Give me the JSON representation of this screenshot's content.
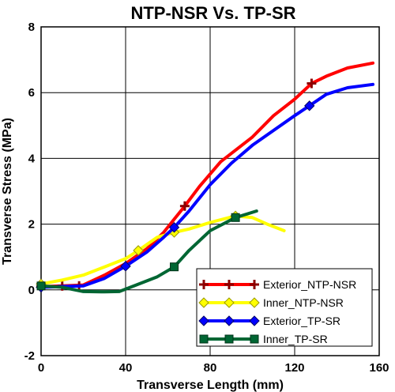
{
  "chart_data": {
    "type": "line",
    "title": "NTP-NSR Vs. TP-SR",
    "xlabel": "Transverse Length (mm)",
    "ylabel": "Transverse Stress (MPa)",
    "xlim": [
      0,
      160
    ],
    "ylim": [
      -2,
      8
    ],
    "xticks": [
      0,
      40,
      80,
      120,
      160
    ],
    "yticks": [
      -2,
      0,
      2,
      4,
      6,
      8
    ],
    "grid": true,
    "legend_position": "bottom-right",
    "series": [
      {
        "name": "Exterior_NTP-NSR",
        "color": "#ff0000",
        "marker": "plus",
        "markers": [
          [
            0,
            0.1
          ],
          [
            10,
            0.12
          ],
          [
            18,
            0.12
          ],
          [
            68,
            2.55
          ],
          [
            128,
            6.28
          ]
        ],
        "points": [
          [
            0,
            0.1
          ],
          [
            10,
            0.12
          ],
          [
            20,
            0.15
          ],
          [
            30,
            0.45
          ],
          [
            40,
            0.8
          ],
          [
            50,
            1.25
          ],
          [
            58,
            1.75
          ],
          [
            63,
            2.15
          ],
          [
            68,
            2.55
          ],
          [
            75,
            3.15
          ],
          [
            85,
            3.9
          ],
          [
            100,
            4.65
          ],
          [
            110,
            5.3
          ],
          [
            120,
            5.8
          ],
          [
            128,
            6.28
          ],
          [
            135,
            6.5
          ],
          [
            145,
            6.75
          ],
          [
            157,
            6.9
          ]
        ]
      },
      {
        "name": "Inner_NTP-NSR",
        "color": "#ffff00",
        "marker": "diamond",
        "markers": [
          [
            0,
            0.18
          ],
          [
            46,
            1.2
          ],
          [
            63,
            1.75
          ],
          [
            92,
            2.25
          ]
        ],
        "points": [
          [
            0,
            0.18
          ],
          [
            10,
            0.3
          ],
          [
            20,
            0.45
          ],
          [
            30,
            0.7
          ],
          [
            40,
            0.95
          ],
          [
            46,
            1.2
          ],
          [
            55,
            1.6
          ],
          [
            63,
            1.75
          ],
          [
            70,
            1.85
          ],
          [
            80,
            2.05
          ],
          [
            92,
            2.25
          ],
          [
            100,
            2.2
          ],
          [
            107,
            2.0
          ],
          [
            115,
            1.8
          ]
        ]
      },
      {
        "name": "Exterior_TP-SR",
        "color": "#0000ff",
        "marker": "diamond",
        "markers": [
          [
            0,
            0.08
          ],
          [
            40,
            0.72
          ],
          [
            63,
            1.9
          ],
          [
            127,
            5.6
          ]
        ],
        "points": [
          [
            0,
            0.08
          ],
          [
            10,
            0.1
          ],
          [
            20,
            0.12
          ],
          [
            30,
            0.35
          ],
          [
            40,
            0.72
          ],
          [
            50,
            1.15
          ],
          [
            58,
            1.6
          ],
          [
            63,
            1.9
          ],
          [
            70,
            2.4
          ],
          [
            80,
            3.2
          ],
          [
            90,
            3.85
          ],
          [
            100,
            4.4
          ],
          [
            110,
            4.85
          ],
          [
            120,
            5.3
          ],
          [
            127,
            5.6
          ],
          [
            135,
            5.95
          ],
          [
            145,
            6.15
          ],
          [
            157,
            6.25
          ]
        ]
      },
      {
        "name": "Inner_TP-SR",
        "color": "#006633",
        "marker": "square",
        "markers": [
          [
            0,
            0.12
          ],
          [
            63,
            0.7
          ],
          [
            92,
            2.2
          ]
        ],
        "points": [
          [
            0,
            0.12
          ],
          [
            10,
            0.08
          ],
          [
            20,
            -0.05
          ],
          [
            30,
            -0.06
          ],
          [
            37,
            -0.05
          ],
          [
            45,
            0.15
          ],
          [
            55,
            0.4
          ],
          [
            63,
            0.7
          ],
          [
            70,
            1.2
          ],
          [
            80,
            1.8
          ],
          [
            92,
            2.2
          ],
          [
            102,
            2.4
          ]
        ]
      }
    ]
  }
}
